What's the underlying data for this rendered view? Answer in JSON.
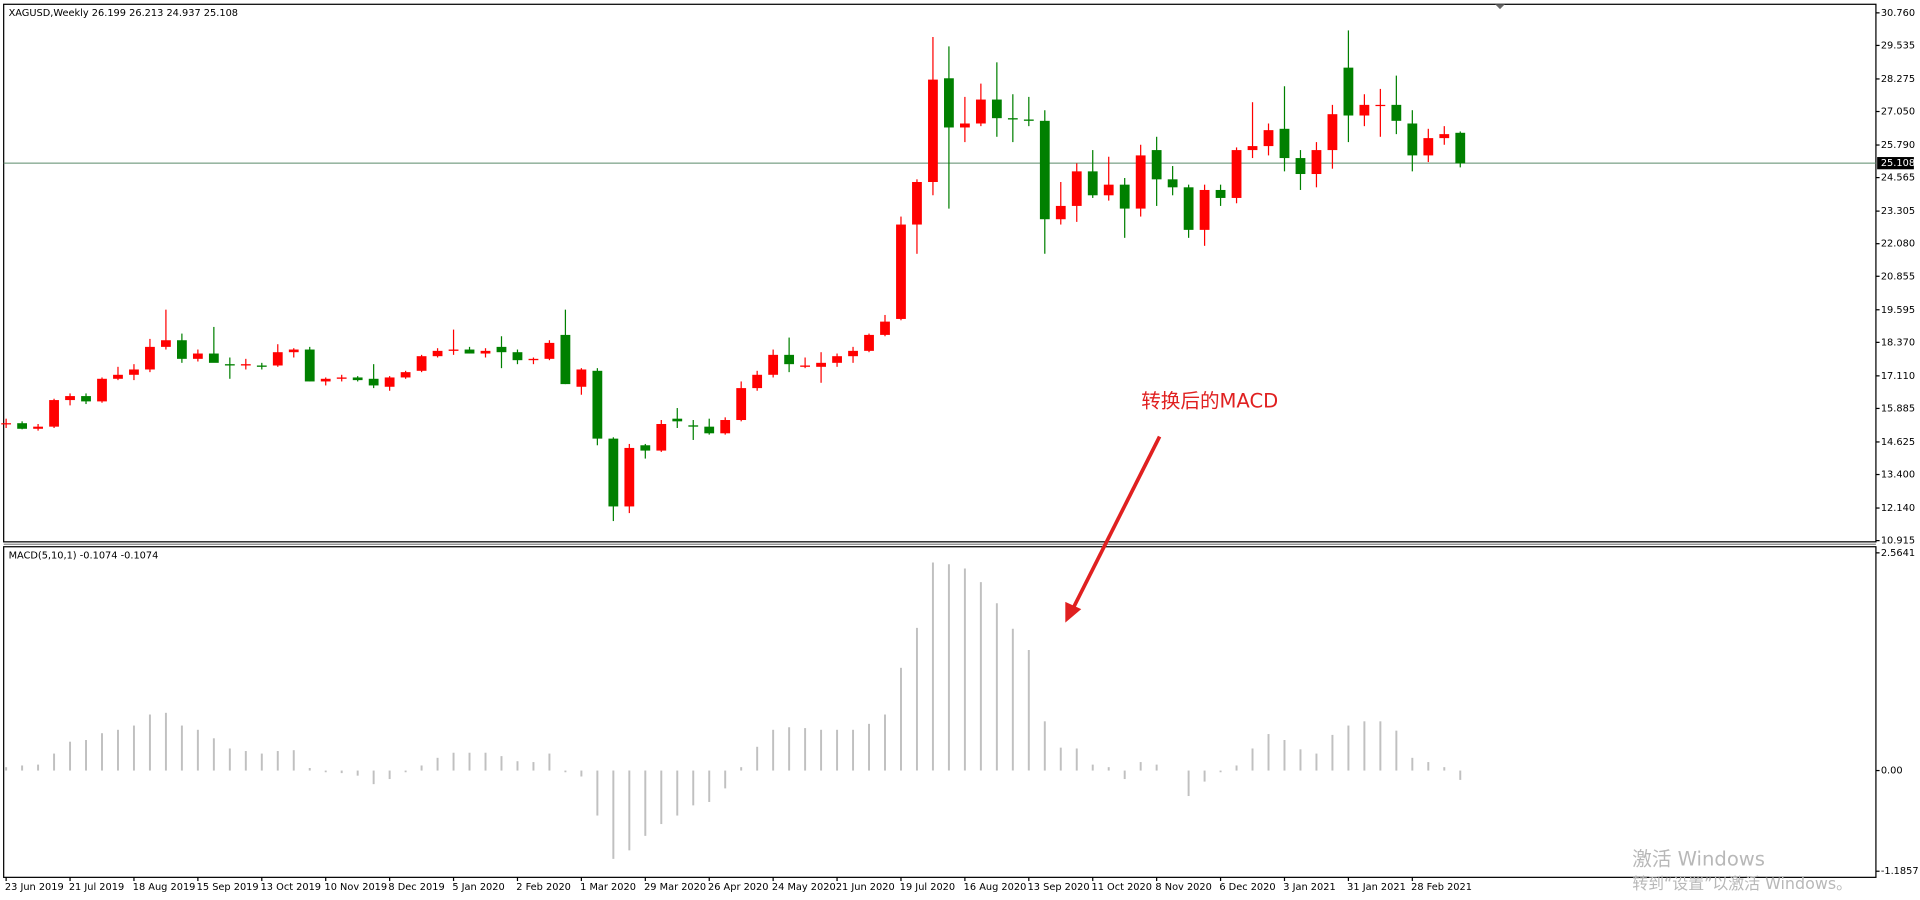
{
  "chart_data": [
    {
      "type": "candlestick",
      "title": "XAGUSD,Weekly  26.199 26.213 24.937 25.108",
      "categories": [
        "23 Jun 2019",
        null,
        null,
        null,
        "21 Jul 2019",
        null,
        null,
        null,
        "18 Aug 2019",
        null,
        null,
        null,
        "15 Sep 2019",
        null,
        null,
        null,
        "13 Oct 2019",
        null,
        null,
        null,
        "10 Nov 2019",
        null,
        null,
        null,
        "8 Dec 2019",
        null,
        null,
        null,
        "5 Jan 2020",
        null,
        null,
        null,
        "2 Feb 2020",
        null,
        null,
        null,
        "1 Mar 2020",
        null,
        null,
        null,
        "29 Mar 2020",
        null,
        null,
        null,
        "26 Apr 2020",
        null,
        null,
        null,
        "24 May 2020",
        null,
        null,
        null,
        "21 Jun 2020",
        null,
        null,
        null,
        "19 Jul 2020",
        null,
        null,
        null,
        "16 Aug 2020",
        null,
        null,
        null,
        "13 Sep 2020",
        null,
        null,
        null,
        "11 Oct 2020",
        null,
        null,
        null,
        "8 Nov 2020",
        null,
        null,
        null,
        "6 Dec 2020",
        null,
        null,
        null,
        "3 Jan 2021",
        null,
        null,
        null,
        "31 Jan 2021",
        null,
        null,
        null,
        "28 Feb 2021",
        null,
        null,
        null
      ],
      "open": [
        15.3,
        15.33,
        15.12,
        15.2,
        16.2,
        16.35,
        16.15,
        17.0,
        17.15,
        17.35,
        18.2,
        18.45,
        17.75,
        17.95,
        17.55,
        17.5,
        17.5,
        17.5,
        18.0,
        18.1,
        16.9,
        17.0,
        17.05,
        17.0,
        16.7,
        17.05,
        17.3,
        17.85,
        18.05,
        18.1,
        17.95,
        18.2,
        18.0,
        17.7,
        17.75,
        18.65,
        16.7,
        17.3,
        14.75,
        12.2,
        14.5,
        14.3,
        15.5,
        15.25,
        15.2,
        14.95,
        15.45,
        16.65,
        17.15,
        17.9,
        17.45,
        17.45,
        17.6,
        17.85,
        18.05,
        18.65,
        19.25,
        22.8,
        24.4,
        28.3,
        26.45,
        26.6,
        27.5,
        26.8,
        26.75,
        26.7,
        23.0,
        23.5,
        24.8,
        23.9,
        24.3,
        23.4,
        25.6,
        24.5,
        24.2,
        22.6,
        24.1,
        23.8,
        25.6,
        25.75,
        26.4,
        25.3,
        24.7,
        25.6,
        28.7,
        26.9,
        27.3,
        27.3,
        26.6,
        25.4,
        26.05,
        26.25
      ],
      "high": [
        15.5,
        15.4,
        15.3,
        16.25,
        16.45,
        16.45,
        17.05,
        17.45,
        17.55,
        18.5,
        19.6,
        18.7,
        18.1,
        18.95,
        17.8,
        17.75,
        17.6,
        18.3,
        18.15,
        18.2,
        17.05,
        17.15,
        17.1,
        17.55,
        17.1,
        17.3,
        17.9,
        18.15,
        18.85,
        18.2,
        18.15,
        18.6,
        18.1,
        17.8,
        18.45,
        19.6,
        17.4,
        17.4,
        14.8,
        14.55,
        14.55,
        15.45,
        15.9,
        15.45,
        15.5,
        15.55,
        16.9,
        17.3,
        18.1,
        18.55,
        17.8,
        18.0,
        17.95,
        18.2,
        18.7,
        19.4,
        23.1,
        24.5,
        29.85,
        29.5,
        27.6,
        28.1,
        28.9,
        27.7,
        27.6,
        27.1,
        24.4,
        25.1,
        25.6,
        25.35,
        24.55,
        25.8,
        26.1,
        25.0,
        24.3,
        24.3,
        24.3,
        25.7,
        27.4,
        26.6,
        28.0,
        25.6,
        25.9,
        27.3,
        30.1,
        27.7,
        27.9,
        28.4,
        27.1,
        26.4,
        26.5,
        26.3
      ],
      "low": [
        15.15,
        15.1,
        15.05,
        15.15,
        16.0,
        16.05,
        16.1,
        16.95,
        16.95,
        17.25,
        18.1,
        17.6,
        17.65,
        17.65,
        17.0,
        17.35,
        17.35,
        17.45,
        17.8,
        16.9,
        16.75,
        16.9,
        16.9,
        16.65,
        16.55,
        17.0,
        17.25,
        17.8,
        17.9,
        17.95,
        17.8,
        17.4,
        17.55,
        17.55,
        17.7,
        16.8,
        16.4,
        14.5,
        11.65,
        11.95,
        14.0,
        14.25,
        15.15,
        14.7,
        14.9,
        14.9,
        15.4,
        16.55,
        17.05,
        17.25,
        17.4,
        16.85,
        17.45,
        17.6,
        18.0,
        18.6,
        19.2,
        21.7,
        23.9,
        23.4,
        25.9,
        26.5,
        26.1,
        25.9,
        26.5,
        21.7,
        22.8,
        22.9,
        23.8,
        23.7,
        22.3,
        23.1,
        23.5,
        23.9,
        22.3,
        22.0,
        23.5,
        23.6,
        25.3,
        25.4,
        24.8,
        24.1,
        24.2,
        24.9,
        25.9,
        26.5,
        26.1,
        26.2,
        24.8,
        25.15,
        25.8,
        24.95
      ],
      "close": [
        15.33,
        15.12,
        15.2,
        16.2,
        16.35,
        16.15,
        17.0,
        17.15,
        17.35,
        18.2,
        18.45,
        17.75,
        17.95,
        17.6,
        17.5,
        17.55,
        17.45,
        18.0,
        18.1,
        16.9,
        17.0,
        17.05,
        16.95,
        16.75,
        17.05,
        17.25,
        17.85,
        18.05,
        18.1,
        17.95,
        18.05,
        18.0,
        17.7,
        17.75,
        18.35,
        16.8,
        17.35,
        14.75,
        12.2,
        14.4,
        14.3,
        15.3,
        15.4,
        15.2,
        14.95,
        15.45,
        16.65,
        17.15,
        17.9,
        17.55,
        17.5,
        17.6,
        17.85,
        18.05,
        18.65,
        19.15,
        22.8,
        24.4,
        28.25,
        26.45,
        26.6,
        27.5,
        26.8,
        26.75,
        26.7,
        23.0,
        23.5,
        24.8,
        23.9,
        24.3,
        23.4,
        25.4,
        24.5,
        24.2,
        22.6,
        24.1,
        23.8,
        25.6,
        25.75,
        26.35,
        25.3,
        24.7,
        25.6,
        26.95,
        26.9,
        27.3,
        27.3,
        26.7,
        25.4,
        26.05,
        26.2,
        25.1
      ],
      "up_color": "#ff0000",
      "down_color": "#008000",
      "ylim": [
        10.915,
        30.76
      ],
      "yticks": [
        {
          "value": 10.915,
          "label": "10.915"
        },
        {
          "value": 12.14,
          "label": "12.140"
        },
        {
          "value": 13.4,
          "label": "13.400"
        },
        {
          "value": 14.625,
          "label": "14.625"
        },
        15.885,
        {
          "value": 17.11,
          "label": "17.110"
        },
        {
          "value": 18.37,
          "label": "18.370"
        },
        19.595,
        20.855,
        {
          "value": 22.08,
          "label": "22.080"
        },
        23.305,
        24.565,
        {
          "value": 25.79,
          "label": "25.790"
        },
        {
          "value": 27.05,
          "label": "27.050"
        },
        28.275,
        29.535,
        {
          "value": 30.76,
          "label": "30.760"
        }
      ],
      "last_price": 25.108,
      "last_price_color": "#5a8a6a"
    },
    {
      "type": "histogram",
      "title": "MACD(5,10,1) -0.1074 -0.1074",
      "color": "#c0c0c0",
      "values": [
        0.04,
        0.06,
        0.07,
        0.2,
        0.34,
        0.36,
        0.44,
        0.48,
        0.53,
        0.66,
        0.68,
        0.53,
        0.48,
        0.38,
        0.26,
        0.23,
        0.2,
        0.23,
        0.24,
        0.03,
        -0.02,
        -0.03,
        -0.06,
        -0.16,
        -0.1,
        -0.02,
        0.06,
        0.15,
        0.21,
        0.21,
        0.21,
        0.17,
        0.11,
        0.1,
        0.2,
        -0.02,
        -0.07,
        -0.53,
        -1.04,
        -0.94,
        -0.77,
        -0.63,
        -0.53,
        -0.41,
        -0.37,
        -0.21,
        0.04,
        0.28,
        0.48,
        0.51,
        0.5,
        0.48,
        0.48,
        0.48,
        0.55,
        0.66,
        1.21,
        1.68,
        2.45,
        2.43,
        2.38,
        2.22,
        1.97,
        1.67,
        1.42,
        0.58,
        0.27,
        0.26,
        0.07,
        0.04,
        -0.1,
        0.1,
        0.07,
        0,
        -0.3,
        -0.13,
        -0.02,
        0.06,
        0.26,
        0.43,
        0.36,
        0.25,
        0.2,
        0.42,
        0.53,
        0.58,
        0.58,
        0.47,
        0.15,
        0.1,
        0.04,
        -0.11
      ],
      "ylim": [
        -1.1857,
        2.5641
      ],
      "yticks": [
        -1.1857,
        {
          "value": 0,
          "label": "0.00"
        },
        2.5641
      ]
    }
  ],
  "annotation": "转换后的MACD",
  "watermark": {
    "title": "激活 Windows",
    "text": "转到“设置”以激活 Windows。"
  }
}
